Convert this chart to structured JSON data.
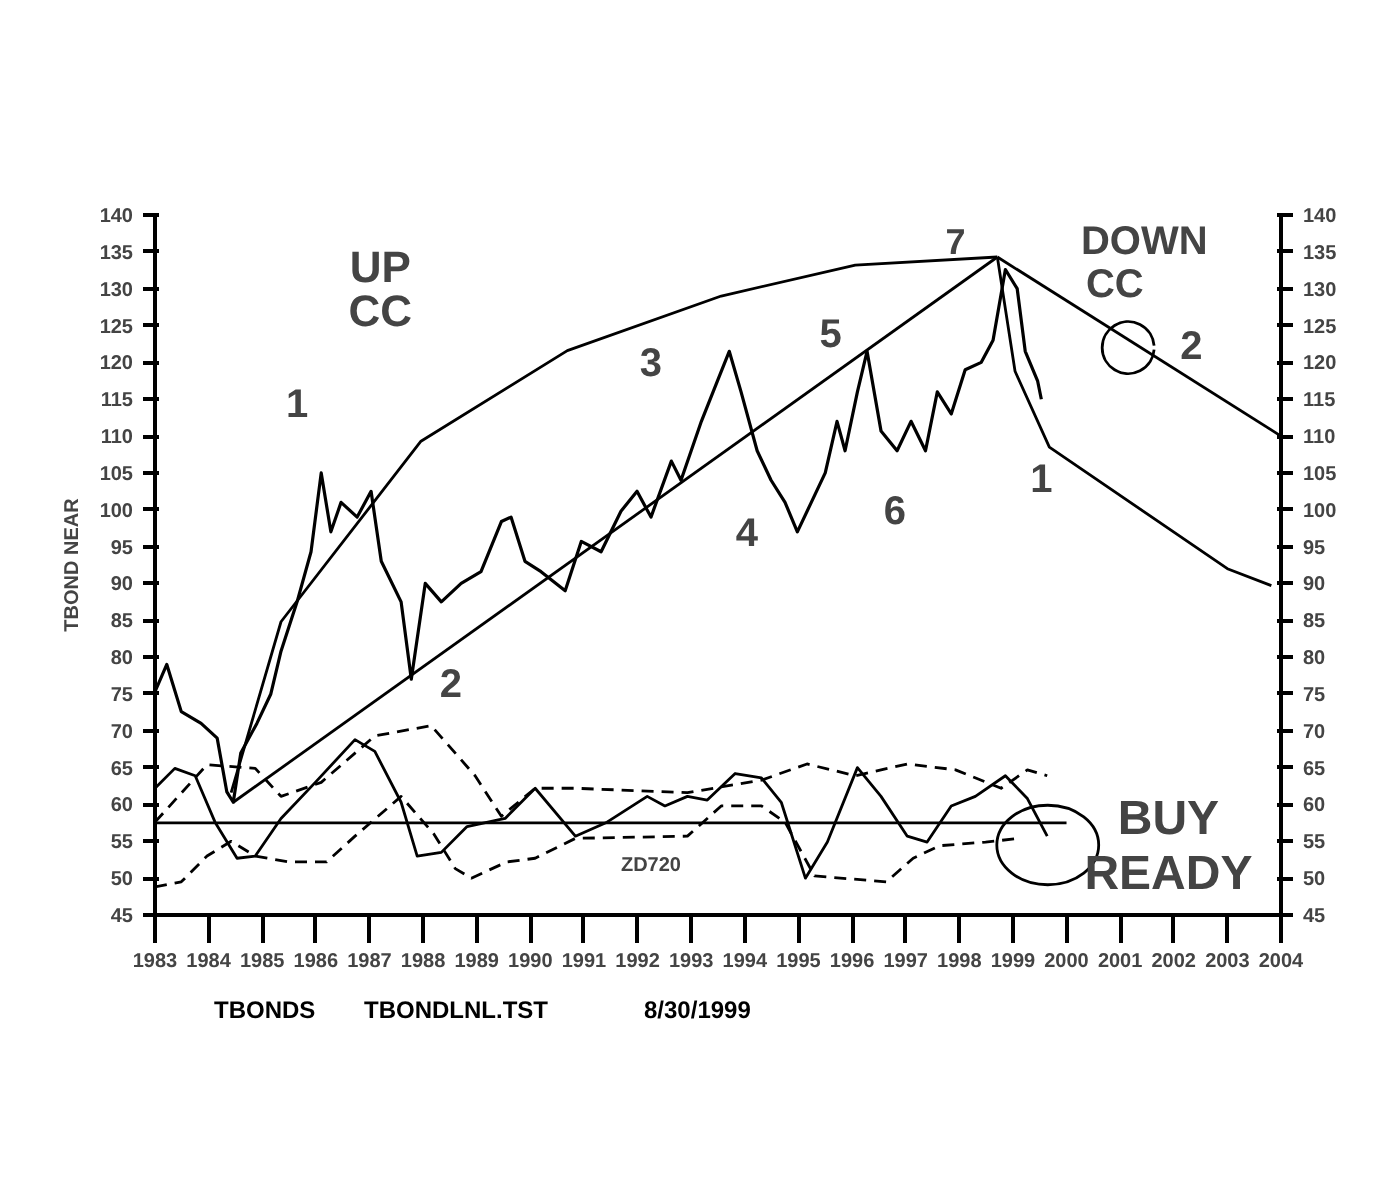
{
  "chart_data": {
    "type": "line",
    "ylabel": "TBOND NEAR",
    "xlim": [
      1983,
      2004
    ],
    "ylim": [
      45,
      140
    ],
    "y2lim": [
      45,
      140
    ],
    "xticks": [
      1983,
      1984,
      1985,
      1986,
      1987,
      1988,
      1989,
      1990,
      1991,
      1992,
      1993,
      1994,
      1995,
      1996,
      1997,
      1998,
      1999,
      2000,
      2001,
      2002,
      2003,
      2004
    ],
    "yticks": [
      45,
      50,
      55,
      60,
      65,
      70,
      75,
      80,
      85,
      90,
      95,
      100,
      105,
      110,
      115,
      120,
      125,
      130,
      135,
      140
    ],
    "y2ticks": [
      45,
      50,
      55,
      60,
      65,
      70,
      75,
      80,
      85,
      90,
      95,
      100,
      105,
      110,
      115,
      120,
      125,
      130,
      135,
      140
    ],
    "grid": false,
    "marker": "none",
    "series": [
      {
        "color": "#000000",
        "line_style": "solid",
        "x": [
          1983.0,
          1983.22,
          1983.49,
          1983.86,
          1984.16,
          1984.34,
          1984.46,
          1984.6,
          1984.9,
          1985.16,
          1985.35,
          1985.65,
          1985.91,
          1986.1,
          1986.28,
          1986.47,
          1986.77,
          1987.03,
          1987.22,
          1987.59,
          1987.78,
          1988.04,
          1988.34,
          1988.71,
          1989.08,
          1989.46,
          1989.64,
          1989.9,
          1990.2,
          1990.65,
          1990.95,
          1991.32,
          1991.69,
          1991.99,
          1992.25,
          1992.63,
          1992.81,
          1993.19,
          1993.49,
          1993.71,
          1993.93,
          1994.23,
          1994.49,
          1994.75,
          1994.98,
          1995.24,
          1995.5,
          1995.72,
          1995.87,
          1996.1,
          1996.28,
          1996.54,
          1996.84,
          1997.1,
          1997.37,
          1997.59,
          1997.85,
          1998.11,
          1998.41,
          1998.63,
          1998.86,
          1999.08,
          1999.23,
          1999.46,
          1999.53
        ],
        "values": [
          75.3,
          79,
          72.6,
          71,
          69,
          61.7,
          60.3,
          67,
          71,
          75,
          80.8,
          87.5,
          94.3,
          105,
          97,
          101,
          99,
          102.5,
          93,
          87.5,
          77,
          90,
          87.5,
          90,
          91.6,
          98.4,
          99,
          93,
          91.6,
          89,
          95.7,
          94.3,
          99.8,
          102.5,
          99,
          106.6,
          104,
          112,
          117.5,
          121.5,
          116,
          108,
          104,
          101,
          97,
          101,
          105,
          112,
          108,
          116,
          121.5,
          110.7,
          108,
          112,
          108,
          116,
          113,
          119,
          120,
          123,
          132.6,
          130,
          121.5,
          117.5,
          115
        ]
      },
      {
        "color": "#000000",
        "line_style": "solid",
        "x": [
          1984.42,
          1985.35,
          1987.96,
          1990.69,
          1993.56,
          1996.06,
          1998.71
        ],
        "values": [
          61.6,
          84.8,
          109.3,
          121.6,
          129,
          133.2,
          134.3
        ]
      },
      {
        "color": "#000000",
        "line_style": "solid",
        "x": [
          1984.46,
          1998.71
        ],
        "values": [
          60.3,
          134.3
        ]
      },
      {
        "color": "#000000",
        "line_style": "solid",
        "x": [
          1998.71,
          2004
        ],
        "values": [
          134.3,
          110
        ]
      },
      {
        "color": "#000000",
        "line_style": "solid",
        "x": [
          1998.71,
          1999.04,
          1999.68,
          2003.0,
          2003.82
        ],
        "values": [
          134.3,
          118.8,
          108.5,
          92,
          89.7
        ]
      },
      {
        "color": "#000000",
        "line_style": "solid",
        "x": [
          1983.0,
          1983.37,
          1983.75,
          1984.12,
          1984.53,
          1984.87,
          1985.35,
          1985.99,
          1986.73,
          1987.1,
          1987.59,
          1987.89,
          1988.34,
          1988.82,
          1989.53,
          1990.09,
          1990.84,
          1991.43,
          1992.18,
          1992.51,
          1992.93,
          1993.3,
          1993.82,
          1994.31,
          1994.68,
          1995.13,
          1995.54,
          1996.1,
          1996.54,
          1997.03,
          1997.4,
          1997.85,
          1998.3,
          1998.86,
          1999.27,
          1999.64
        ],
        "values": [
          62.2,
          64.9,
          63.9,
          57.6,
          52.7,
          53,
          58.1,
          63,
          68.8,
          67.2,
          60.3,
          53,
          53.5,
          57,
          58.1,
          62.2,
          55.7,
          57.6,
          61.1,
          59.8,
          61.1,
          60.6,
          64.2,
          63.6,
          60.3,
          50,
          54.9,
          65,
          61.1,
          55.7,
          54.9,
          59.8,
          61.1,
          63.9,
          60.8,
          55.7
        ]
      },
      {
        "color": "#000000",
        "line_style": "dashed",
        "x": [
          1983.0,
          1983.97,
          1984.87,
          1985.35,
          1986.1,
          1987.1,
          1988.15,
          1988.97,
          1989.46,
          1990.09,
          1990.84,
          1992.93,
          1994.31,
          1995.16,
          1996.06,
          1997.03,
          1997.93,
          1998.78,
          1999.27,
          1999.64
        ],
        "values": [
          57.6,
          65.4,
          64.9,
          61.1,
          63,
          69.3,
          70.7,
          63.9,
          58.4,
          62.2,
          62.2,
          61.6,
          63.3,
          65.5,
          63.9,
          65.5,
          64.7,
          62.2,
          64.7,
          63.9
        ]
      },
      {
        "color": "#000000",
        "line_style": "dashed",
        "x": [
          1983.0,
          1983.49,
          1983.97,
          1984.42,
          1984.87,
          1985.5,
          1986.2,
          1986.73,
          1987.59,
          1988.2,
          1988.6,
          1988.9,
          1989.56,
          1990.09,
          1990.84,
          1992.93,
          1993.56,
          1994.31,
          1994.75,
          1995.3,
          1996.64,
          1997.14,
          1997.63,
          1998.49,
          1999.12
        ],
        "values": [
          48.8,
          49.5,
          53,
          55,
          53,
          52.2,
          52.2,
          55.7,
          61.1,
          56,
          51.3,
          50,
          52.2,
          52.7,
          55.4,
          55.7,
          59.8,
          59.8,
          57.6,
          50.3,
          49.5,
          52.7,
          54.4,
          54.9,
          55.4
        ]
      },
      {
        "color": "#000000",
        "line_style": "solid",
        "x": [
          1983,
          2000
        ],
        "values": [
          57.5,
          57.5
        ]
      }
    ],
    "annotations": [
      "1",
      "2",
      "3",
      "4",
      "5",
      "6",
      "7",
      "1",
      "2",
      "UP",
      "CC",
      "DOWN",
      "CC",
      "BUY",
      "READY",
      "ZD720",
      "TBONDS",
      "TBONDLNL.TST",
      "8/30/1999"
    ]
  }
}
